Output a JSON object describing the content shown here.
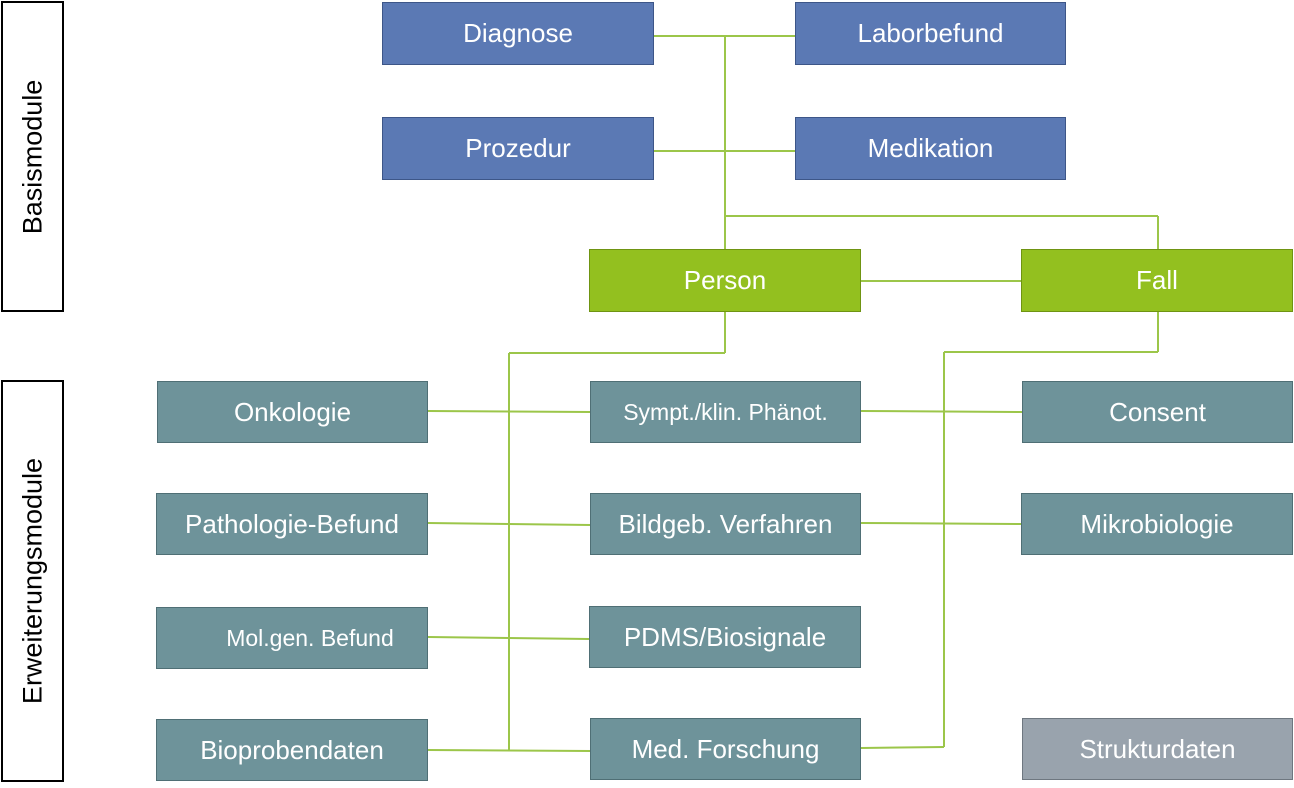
{
  "side_labels": {
    "basis": "Basismodule",
    "extension": "Erweiterungsmodule"
  },
  "basis": {
    "diagnose": "Diagnose",
    "laborbefund": "Laborbefund",
    "prozedur": "Prozedur",
    "medikation": "Medikation"
  },
  "core": {
    "person": "Person",
    "fall": "Fall"
  },
  "extension": {
    "onkologie": "Onkologie",
    "sympt": "Sympt./klin. Phänot.",
    "consent": "Consent",
    "pathologie": "Pathologie-Befund",
    "bildgeb": "Bildgeb. Verfahren",
    "mikrobiologie": "Mikrobiologie",
    "molgen": "Mol.gen. Befund",
    "pdms": "PDMS/Biosignale",
    "bioproben": "Bioprobendaten",
    "medforschung": "Med. Forschung",
    "strukturdaten": "Strukturdaten"
  },
  "colors": {
    "basis": "#5b79b4",
    "core": "#93c01f",
    "extension": "#6e939a",
    "strukturdaten": "#99a3ad",
    "connector": "#93c01f"
  }
}
